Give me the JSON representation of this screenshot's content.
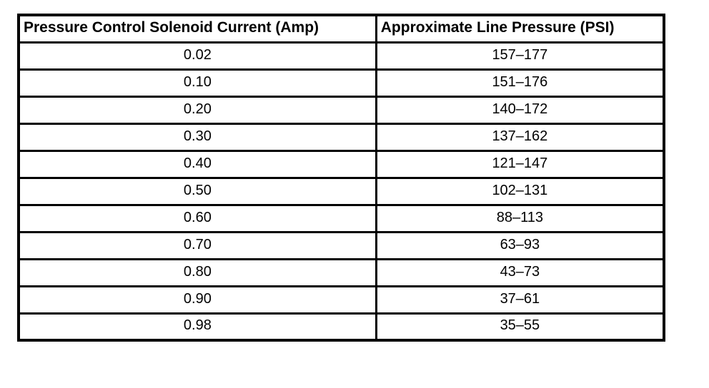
{
  "table": {
    "columns": [
      {
        "label": "Pressure Control Solenoid Current (Amp)"
      },
      {
        "label": "Approximate Line Pressure (PSI)"
      }
    ],
    "rows": [
      {
        "current": "0.02",
        "pressure": "157–177"
      },
      {
        "current": "0.10",
        "pressure": "151–176"
      },
      {
        "current": "0.20",
        "pressure": "140–172"
      },
      {
        "current": "0.30",
        "pressure": "137–162"
      },
      {
        "current": "0.40",
        "pressure": "121–147"
      },
      {
        "current": "0.50",
        "pressure": "102–131"
      },
      {
        "current": "0.60",
        "pressure": "88–113"
      },
      {
        "current": "0.70",
        "pressure": "63–93"
      },
      {
        "current": "0.80",
        "pressure": "43–73"
      },
      {
        "current": "0.90",
        "pressure": "37–61"
      },
      {
        "current": "0.98",
        "pressure": "35–55"
      }
    ]
  }
}
